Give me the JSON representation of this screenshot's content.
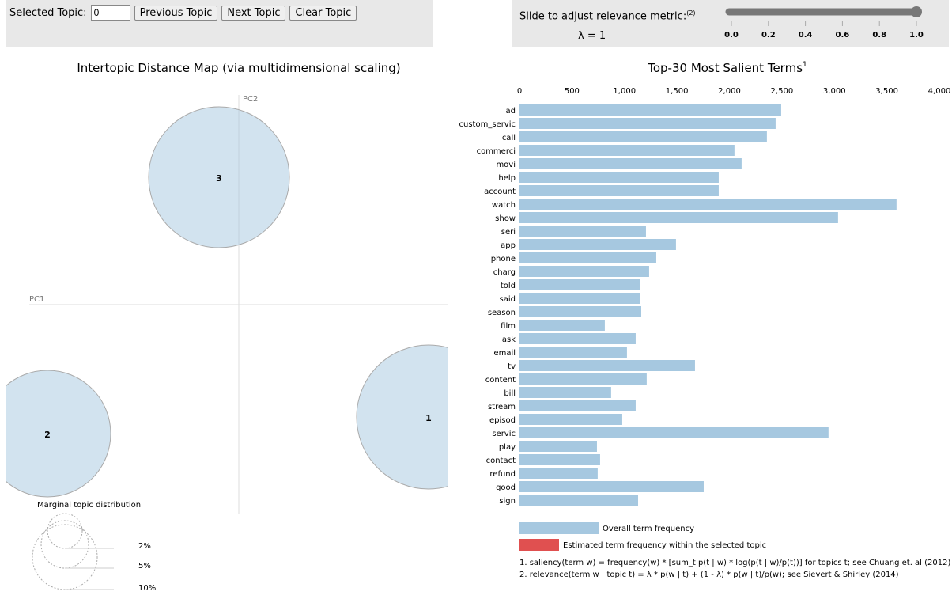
{
  "controls": {
    "selected_topic_label": "Selected Topic:",
    "selected_topic_value": "0",
    "previous": "Previous Topic",
    "next": "Next Topic",
    "clear": "Clear Topic"
  },
  "slider": {
    "label": "Slide to adjust relevance metric:",
    "label_sup": "(2)",
    "lambda_text": "λ = 1",
    "value": 1,
    "ticks": [
      "0.0",
      "0.2",
      "0.4",
      "0.6",
      "0.8",
      "1.0"
    ]
  },
  "map": {
    "title": "Intertopic Distance Map (via multidimensional scaling)",
    "pc1": "PC1",
    "pc2": "PC2",
    "topics": [
      {
        "id": "1"
      },
      {
        "id": "2"
      },
      {
        "id": "3"
      }
    ],
    "legend_title": "Marginal topic distribution",
    "legend_labels": [
      "2%",
      "5%",
      "10%"
    ]
  },
  "chart_data": {
    "type": "bar",
    "title": "Top-30 Most Salient Terms",
    "title_sup": "1",
    "xlim": [
      0,
      4000
    ],
    "xticks": [
      "0",
      "500",
      "1,000",
      "1,500",
      "2,000",
      "2,500",
      "3,000",
      "3,500",
      "4,000"
    ],
    "categories": [
      "ad",
      "custom_servic",
      "call",
      "commerci",
      "movi",
      "help",
      "account",
      "watch",
      "show",
      "seri",
      "app",
      "phone",
      "charg",
      "told",
      "said",
      "season",
      "film",
      "ask",
      "email",
      "tv",
      "content",
      "bill",
      "stream",
      "episod",
      "servic",
      "play",
      "contact",
      "refund",
      "good",
      "sign"
    ],
    "series": [
      {
        "name": "Overall term frequency",
        "color": "#a6c8e0",
        "values": [
          2493,
          2440,
          2357,
          2048,
          2116,
          1898,
          1898,
          3592,
          3035,
          1205,
          1491,
          1303,
          1235,
          1152,
          1152,
          1160,
          813,
          1107,
          1024,
          1672,
          1212,
          873,
          1107,
          979,
          2944,
          738,
          768,
          745,
          1755,
          1130
        ]
      }
    ],
    "legend": [
      "Overall term frequency",
      "Estimated term frequency within the selected topic"
    ],
    "legend_colors": [
      "#a6c8e0",
      "#e05050"
    ]
  },
  "footnotes": [
    "1. saliency(term w) = frequency(w) * [sum_t p(t | w) * log(p(t | w)/p(t))] for topics t; see Chuang et. al (2012)",
    "2. relevance(term w | topic t) = λ * p(w | t) + (1 - λ) * p(w | t)/p(w); see Sievert & Shirley (2014)"
  ]
}
